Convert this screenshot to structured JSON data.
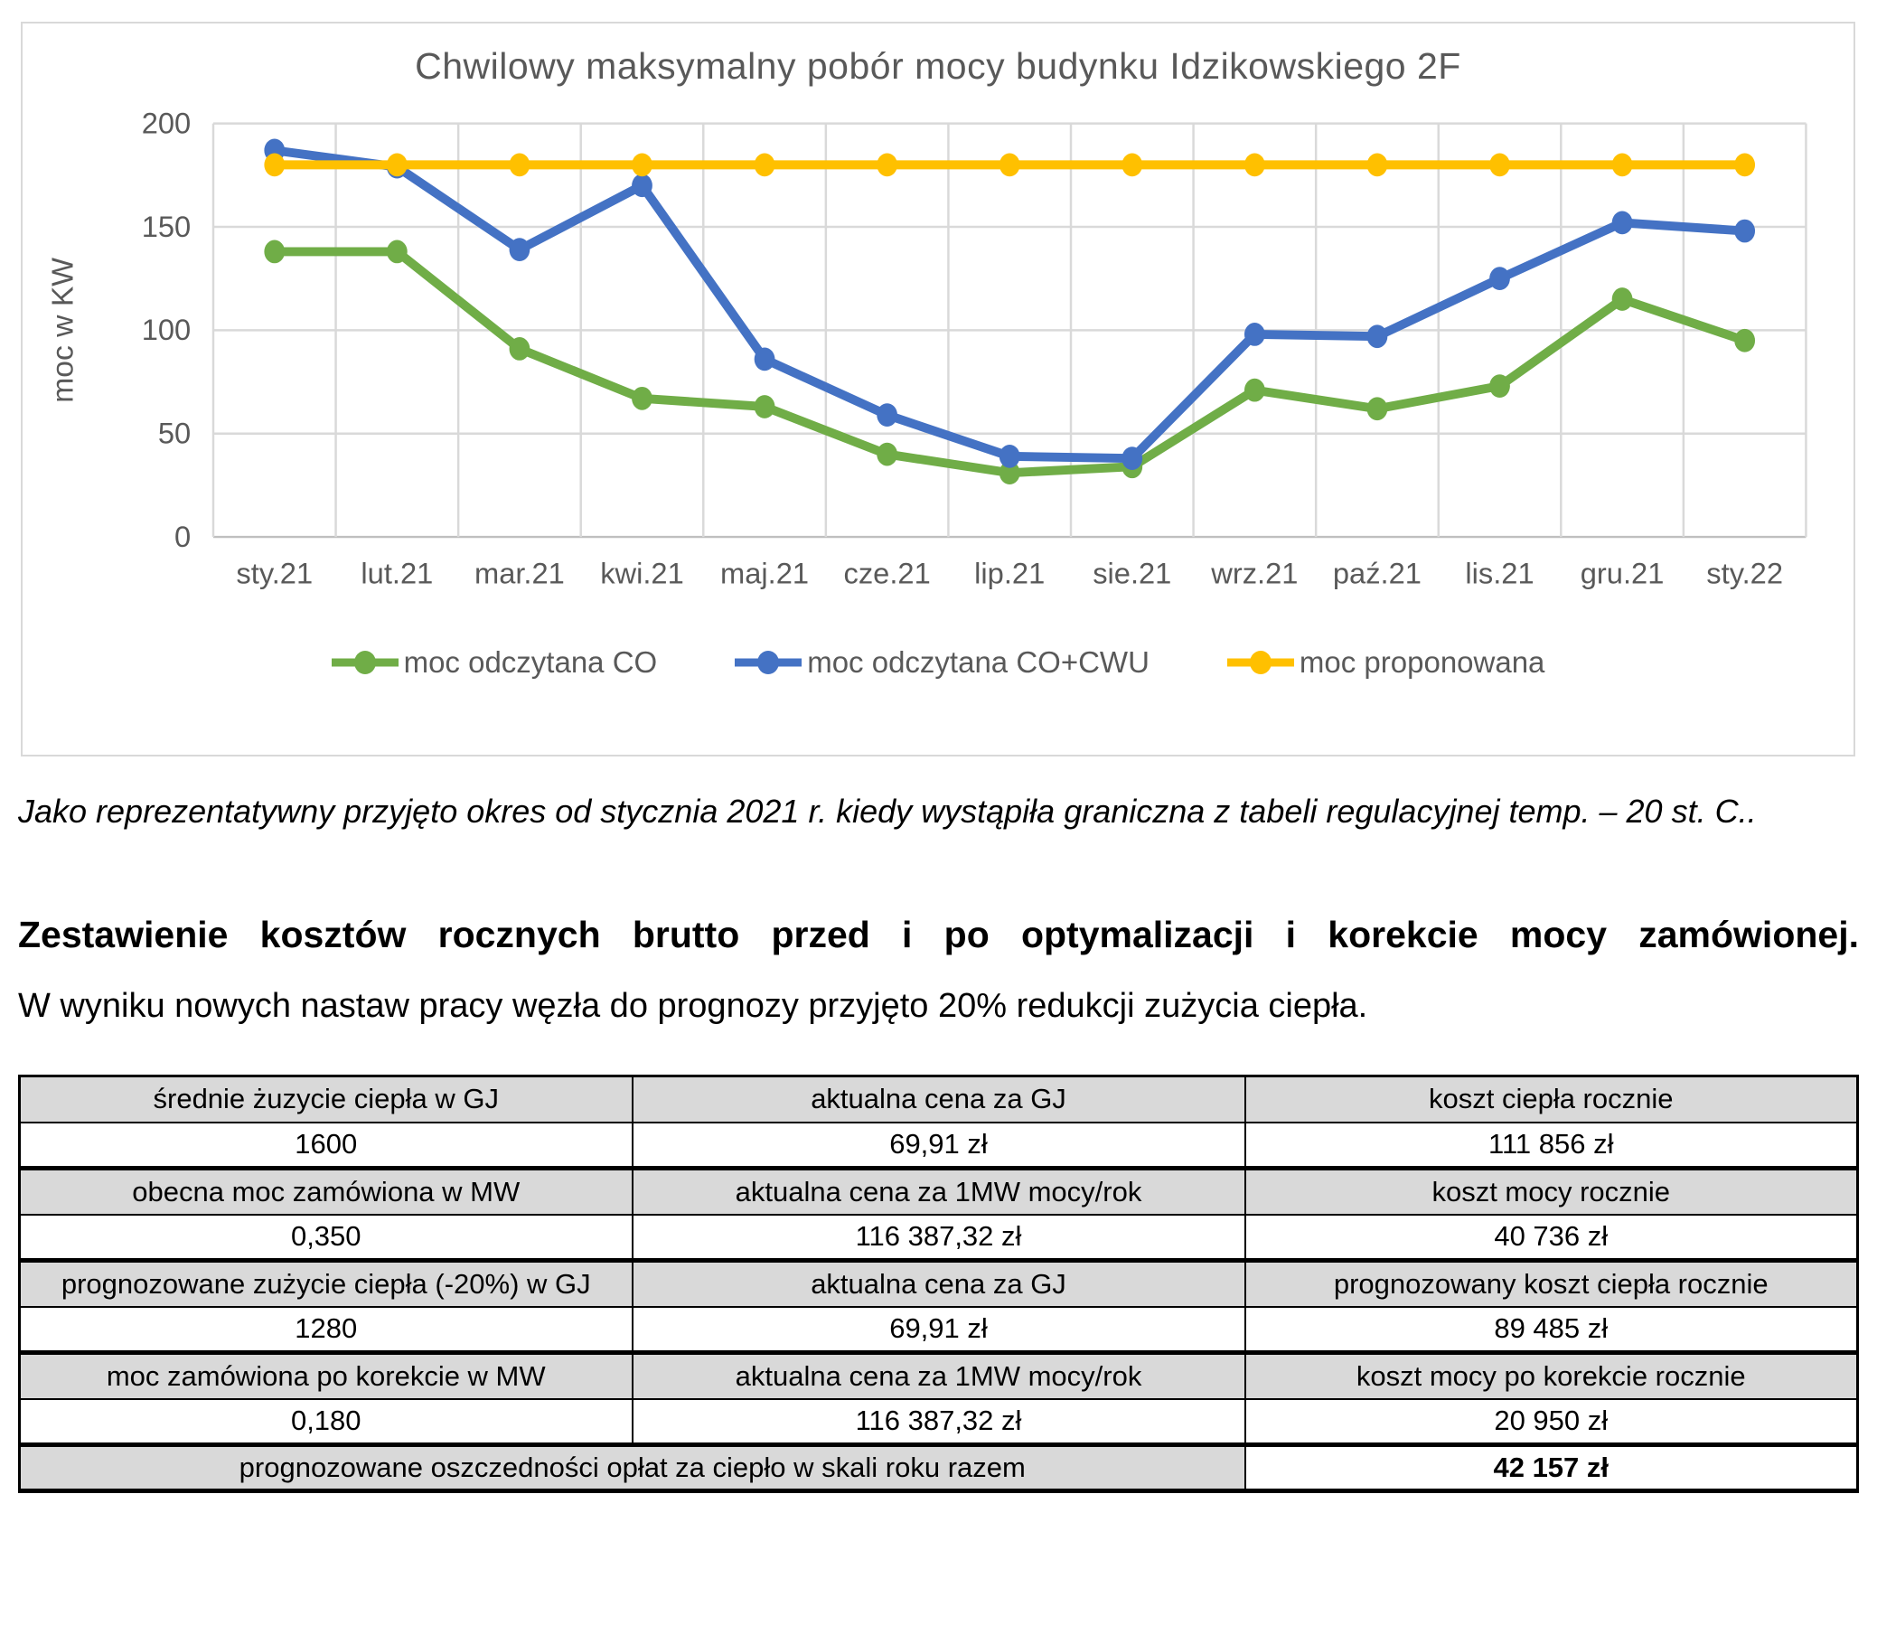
{
  "colors": {
    "chart_text": "#595959",
    "gridline": "#D9D9D9",
    "axis_line": "#BFBFBF",
    "table_header_bg": "#D9D9D9",
    "table_border": "#000000",
    "chart_border": "#D9D9D9"
  },
  "chart_data": {
    "type": "line",
    "title": "Chwilowy maksymalny pobór mocy budynku Idzikowskiego 2F",
    "xlabel": "",
    "ylabel": "moc w KW",
    "ylim": [
      0,
      200
    ],
    "yticks": [
      0,
      50,
      100,
      150,
      200
    ],
    "grid": true,
    "legend_position": "bottom",
    "categories": [
      "sty.21",
      "lut.21",
      "mar.21",
      "kwi.21",
      "maj.21",
      "cze.21",
      "lip.21",
      "sie.21",
      "wrz.21",
      "paź.21",
      "lis.21",
      "gru.21",
      "sty.22"
    ],
    "series": [
      {
        "name": "moc odczytana CO",
        "color": "#70AD47",
        "values": [
          138,
          138,
          91,
          67,
          63,
          40,
          31,
          34,
          71,
          62,
          73,
          115,
          95
        ]
      },
      {
        "name": "moc odczytana CO+CWU",
        "color": "#4472C4",
        "values": [
          187,
          179,
          139,
          170,
          86,
          59,
          39,
          38,
          98,
          97,
          125,
          152,
          148
        ]
      },
      {
        "name": "moc proponowana",
        "color": "#FFC000",
        "values": [
          180,
          180,
          180,
          180,
          180,
          180,
          180,
          180,
          180,
          180,
          180,
          180,
          180
        ]
      }
    ]
  },
  "caption": "Jako reprezentatywny przyjęto okres od stycznia 2021 r. kiedy wystąpiła graniczna z tabeli regulacyjnej  temp. – 20 st. C..",
  "heading": "Zestawienie kosztów rocznych brutto przed i po optymalizacji i korekcie mocy zamówionej.",
  "intro": "W wyniku nowych nastaw pracy węzła do prognozy przyjęto 20% redukcji zużycia ciepła.",
  "table": {
    "rows": [
      {
        "group_start": false,
        "cells": [
          {
            "text": "średnie żuzycie ciepła w GJ",
            "header": true
          },
          {
            "text": "aktualna cena za GJ",
            "header": true
          },
          {
            "text": "koszt ciepła rocznie",
            "header": true
          }
        ]
      },
      {
        "group_start": false,
        "cells": [
          {
            "text": "1600"
          },
          {
            "text": "69,91 zł"
          },
          {
            "text": "111 856 zł"
          }
        ]
      },
      {
        "group_start": true,
        "cells": [
          {
            "text": "obecna moc zamówiona w MW",
            "header": true
          },
          {
            "text": "aktualna cena za 1MW mocy/rok",
            "header": true
          },
          {
            "text": "koszt mocy rocznie",
            "header": true
          }
        ]
      },
      {
        "group_start": false,
        "cells": [
          {
            "text": "0,350"
          },
          {
            "text": "116 387,32 zł"
          },
          {
            "text": "40 736 zł"
          }
        ]
      },
      {
        "group_start": true,
        "cells": [
          {
            "text": "prognozowane zużycie ciepła (-20%) w GJ",
            "header": true
          },
          {
            "text": "aktualna cena za GJ",
            "header": true
          },
          {
            "text": "prognozowany koszt ciepła rocznie",
            "header": true
          }
        ]
      },
      {
        "group_start": false,
        "cells": [
          {
            "text": "1280"
          },
          {
            "text": "69,91 zł"
          },
          {
            "text": "89 485 zł"
          }
        ]
      },
      {
        "group_start": true,
        "cells": [
          {
            "text": "moc zamówiona po korekcie w MW",
            "header": true
          },
          {
            "text": "aktualna cena za 1MW mocy/rok",
            "header": true
          },
          {
            "text": "koszt mocy po korekcie rocznie",
            "header": true
          }
        ]
      },
      {
        "group_start": false,
        "cells": [
          {
            "text": "0,180"
          },
          {
            "text": "116 387,32 zł"
          },
          {
            "text": "20 950 zł"
          }
        ]
      },
      {
        "group_start": true,
        "cells": [
          {
            "text": "prognozowane oszczedności opłat za ciepło  w skali roku razem",
            "header": true,
            "colspan": 2
          },
          {
            "text": "42 157 zł",
            "bold": true
          }
        ]
      }
    ]
  }
}
